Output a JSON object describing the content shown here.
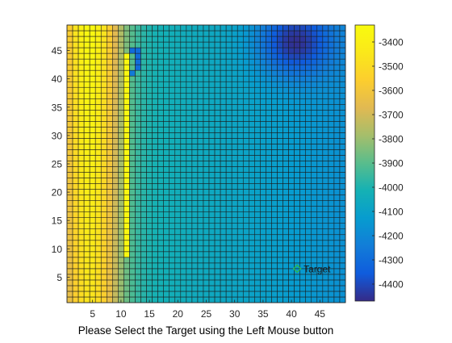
{
  "figure": {
    "xlabel": "Please Select the Target using the Left Mouse button"
  },
  "chart_data": {
    "type": "heatmap",
    "colormap": "parula",
    "x_range": [
      1,
      49
    ],
    "y_range": [
      1,
      49
    ],
    "xlim": [
      1,
      49
    ],
    "ylim": [
      1,
      49
    ],
    "x_ticks": [
      5,
      10,
      15,
      20,
      25,
      30,
      35,
      40,
      45
    ],
    "y_ticks": [
      5,
      10,
      15,
      20,
      25,
      30,
      35,
      40,
      45
    ],
    "color_limits": [
      -4470,
      -3330
    ],
    "colorbar_ticks": [
      -3400,
      -3500,
      -3600,
      -3700,
      -3800,
      -3900,
      -4000,
      -4100,
      -4200,
      -4300,
      -4400
    ],
    "field": {
      "base": -4010,
      "left_ridge": {
        "peak": -3460,
        "center_x": 4.5,
        "width": 5.5,
        "top_boost": 120
      },
      "deep_min": {
        "value": -4460,
        "x": 40.5,
        "y": 46.5,
        "sx": 6.5,
        "sy": 6.0
      },
      "right_slope_per_cell": -4.5,
      "bright_strip": {
        "x": 11,
        "y_from": 9,
        "y_to": 44,
        "value": -3350
      },
      "dark_hook": [
        {
          "x": 12,
          "y": 45,
          "value": -4300
        },
        {
          "x": 13,
          "y": 45,
          "value": -4300
        },
        {
          "x": 13,
          "y": 44,
          "value": -4300
        },
        {
          "x": 13,
          "y": 43,
          "value": -4300
        },
        {
          "x": 13,
          "y": 42,
          "value": -4300
        },
        {
          "x": 12,
          "y": 41,
          "value": -4250
        }
      ]
    },
    "marker": {
      "label": "Target",
      "x": 41.0,
      "y": 6.5,
      "color": "#2db84a"
    }
  }
}
